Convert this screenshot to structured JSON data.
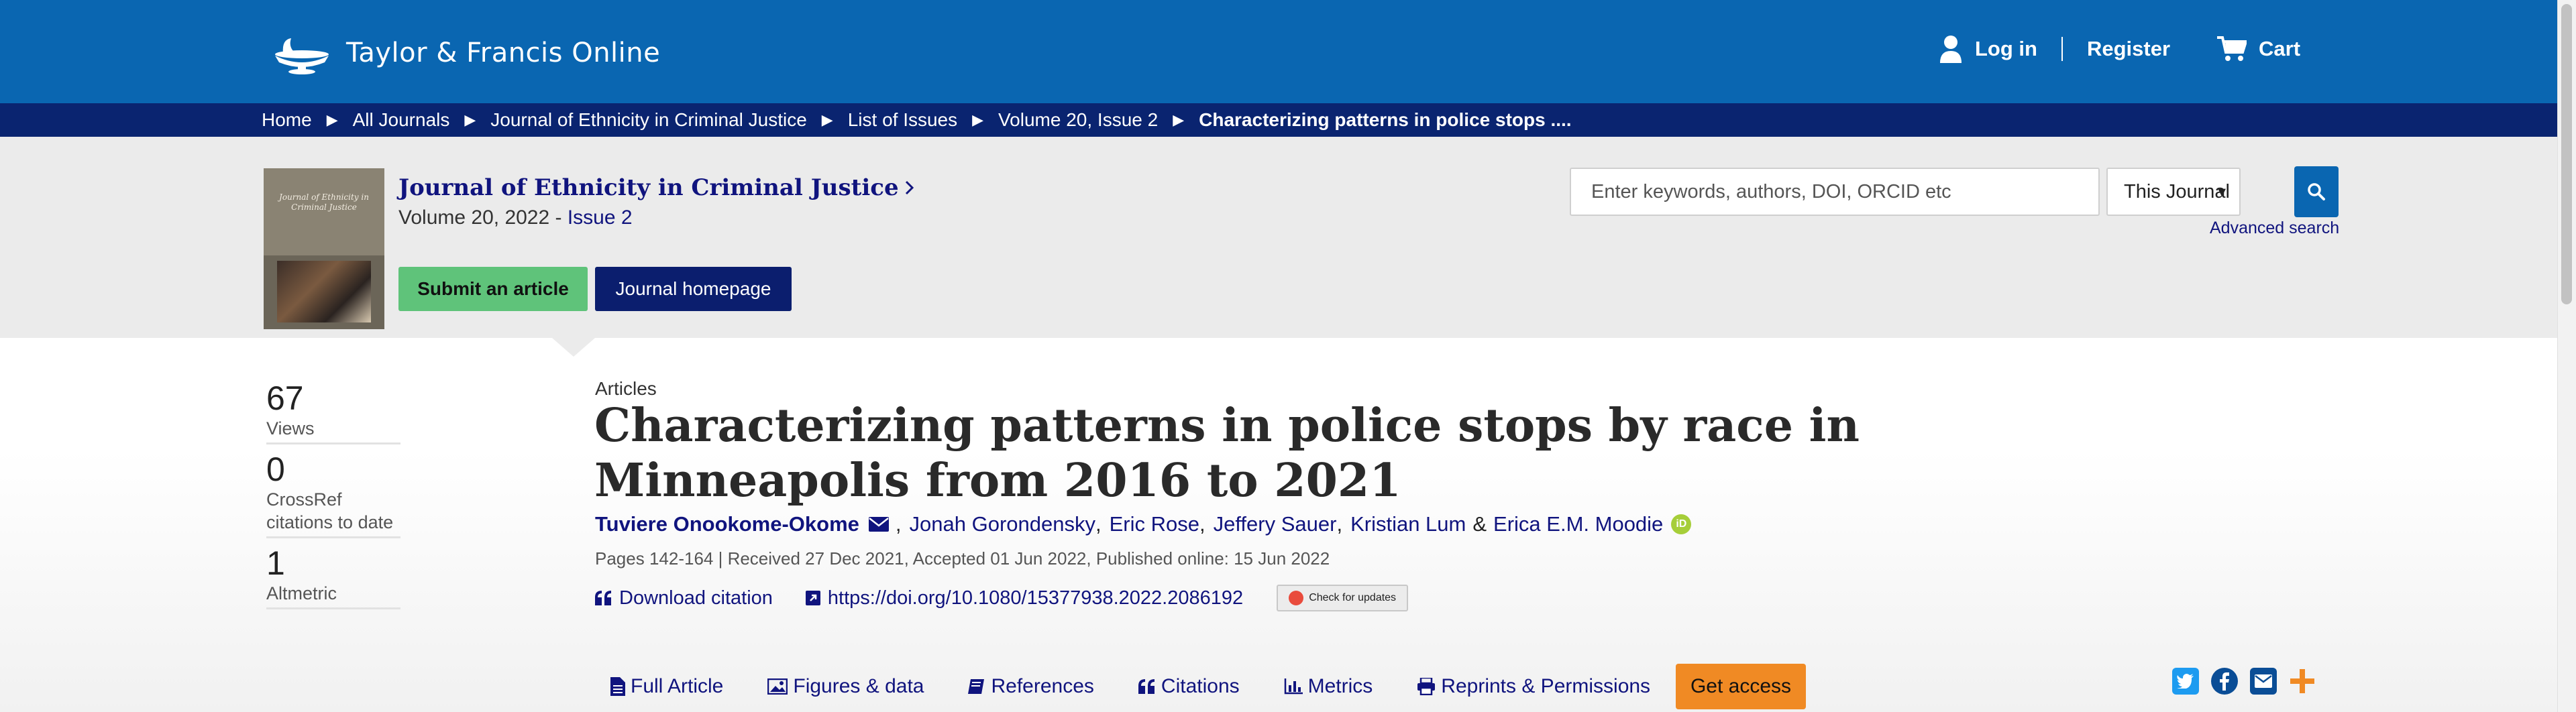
{
  "header": {
    "logo_text": "Taylor & Francis Online",
    "login_label": "Log in",
    "register_label": "Register",
    "cart_label": "Cart"
  },
  "breadcrumb": {
    "items": [
      "Home",
      "All Journals",
      "Journal of Ethnicity in Criminal Justice",
      "List of Issues",
      "Volume 20, Issue 2"
    ],
    "current": "Characterizing patterns in police stops ...."
  },
  "journal": {
    "title": "Journal of Ethnicity in Criminal Justice",
    "volume": "Volume 20, 2022 - ",
    "issue": "Issue 2",
    "cover_text": "Journal of Ethnicity in Criminal Justice",
    "submit_label": "Submit an article",
    "homepage_label": "Journal homepage"
  },
  "search": {
    "placeholder": "Enter keywords, authors, DOI, ORCID etc",
    "scope": "This Journal",
    "advanced_label": "Advanced search"
  },
  "metrics": [
    {
      "value": "67",
      "label": "Views"
    },
    {
      "value": "0",
      "label": "CrossRef citations to date"
    },
    {
      "value": "1",
      "label": "Altmetric"
    }
  ],
  "article": {
    "section": "Articles",
    "title": "Characterizing patterns in police stops by race in Minneapolis from 2016 to 2021",
    "authors": [
      "Tuviere Onookome-Okome",
      "Jonah Gorondensky",
      "Eric Rose",
      "Jeffery Sauer",
      "Kristian Lum",
      "Erica E.M. Moodie"
    ],
    "pages_info": "Pages 142-164 | Received 27 Dec 2021, Accepted 01 Jun 2022, Published online: 15 Jun 2022",
    "download_citation": "Download citation",
    "doi": "https://doi.org/10.1080/15377938.2022.2086192",
    "check_updates": "Check for updates"
  },
  "tabs": {
    "full_article": "Full Article",
    "figures": "Figures & data",
    "references": "References",
    "citations": "Citations",
    "metrics": "Metrics",
    "reprints": "Reprints & Permissions",
    "get_access": "Get access"
  },
  "colors": {
    "header_blue": "#0a66b1",
    "breadcrumb_navy": "#0a2470",
    "link_navy": "#10147e",
    "submit_green": "#5fc37a",
    "access_orange": "#f08a24"
  }
}
